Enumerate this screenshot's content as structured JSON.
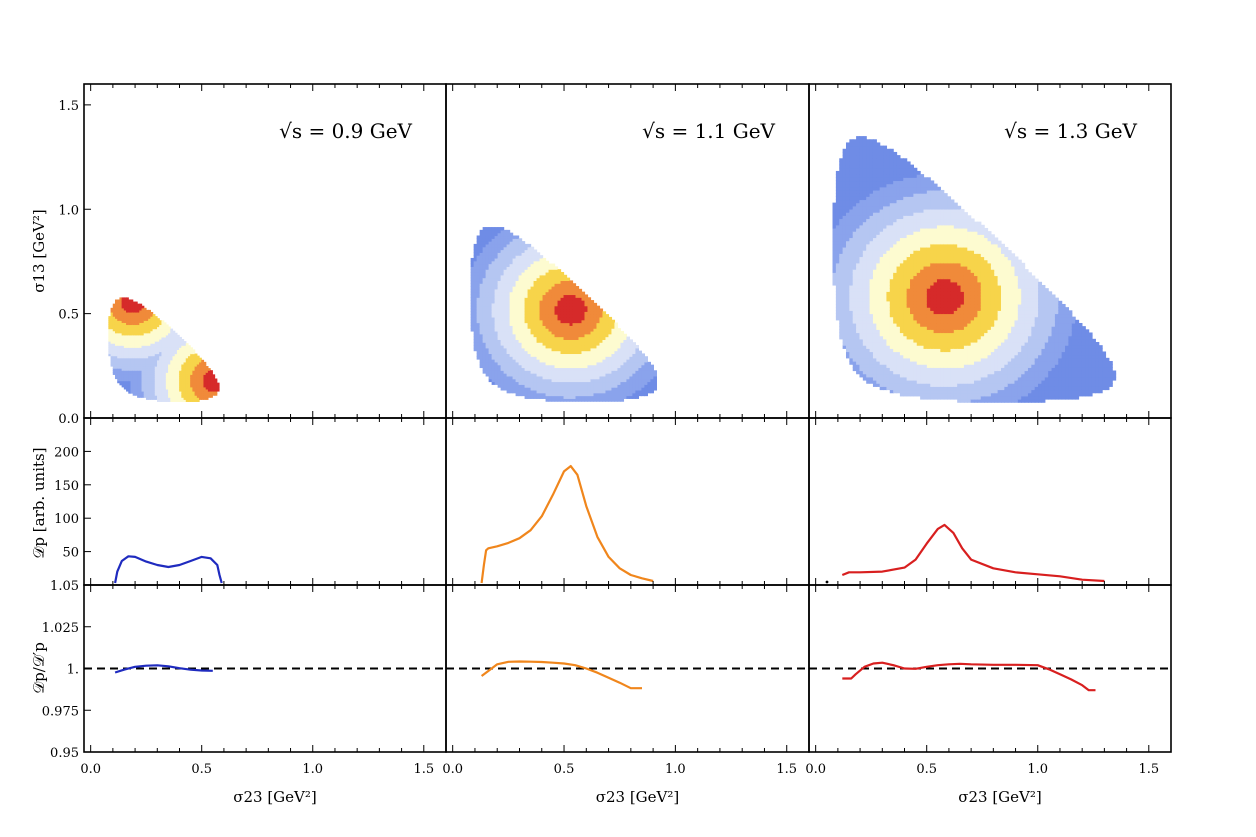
{
  "chart_data": [
    {
      "type": "heatmap",
      "panel_row": "dalitz",
      "title": "√s = 0.9  GeV",
      "sqrt_s": 0.9,
      "ylabel": "σ13 [GeV²]",
      "xlim": [
        -0.03,
        1.6
      ],
      "ylim": [
        0.0,
        1.6
      ],
      "yticks": [
        "0.0",
        "0.5",
        "1.0",
        "1.5"
      ],
      "hotspots": [
        [
          0.19,
          0.56
        ],
        [
          0.56,
          0.18
        ]
      ],
      "colors": [
        "#d62a2a",
        "#f08a3a",
        "#f7d44a",
        "#fdfbd0",
        "#d9e1f7",
        "#b5c6f2",
        "#8aa3ec",
        "#6f8ce6"
      ]
    },
    {
      "type": "heatmap",
      "panel_row": "dalitz",
      "title": "√s = 1.1  GeV",
      "sqrt_s": 1.1,
      "xlim": [
        -0.03,
        1.6
      ],
      "ylim": [
        0.0,
        1.6
      ],
      "hotspots": [
        [
          0.53,
          0.52
        ]
      ],
      "colors": [
        "#d62a2a",
        "#f08a3a",
        "#f7d44a",
        "#fdfbd0",
        "#d9e1f7",
        "#b5c6f2",
        "#8aa3ec",
        "#6f8ce6"
      ]
    },
    {
      "type": "heatmap",
      "panel_row": "dalitz",
      "title": "√s = 1.3  GeV",
      "sqrt_s": 1.3,
      "xlim": [
        -0.03,
        1.6
      ],
      "ylim": [
        0.0,
        1.6
      ],
      "hotspots": [
        [
          0.58,
          0.58
        ]
      ],
      "colors": [
        "#d62a2a",
        "#f08a3a",
        "#f7d44a",
        "#fdfbd0",
        "#d9e1f7",
        "#b5c6f2",
        "#8aa3ec",
        "#6f8ce6"
      ]
    },
    {
      "type": "line",
      "panel_row": "projection",
      "ylabel": "𝒟p [arb. units]",
      "xlim": [
        -0.03,
        1.6
      ],
      "ylim": [
        0,
        250
      ],
      "yticks": [
        "50",
        "100",
        "150",
        "200"
      ],
      "series": [
        {
          "color": "#1f2bbf",
          "x": [
            0.11,
            0.12,
            0.14,
            0.17,
            0.2,
            0.25,
            0.3,
            0.35,
            0.4,
            0.45,
            0.5,
            0.54,
            0.57,
            0.58,
            0.59
          ],
          "y": [
            3,
            20,
            36,
            43,
            42,
            35,
            30,
            27,
            30,
            36,
            42,
            40,
            30,
            15,
            3
          ]
        }
      ]
    },
    {
      "type": "line",
      "panel_row": "projection",
      "xlim": [
        -0.03,
        1.6
      ],
      "ylim": [
        0,
        250
      ],
      "series": [
        {
          "color": "#f0861c",
          "x": [
            0.13,
            0.14,
            0.15,
            0.16,
            0.2,
            0.25,
            0.3,
            0.35,
            0.4,
            0.45,
            0.5,
            0.53,
            0.56,
            0.6,
            0.65,
            0.7,
            0.75,
            0.8,
            0.85,
            0.9
          ],
          "y": [
            3,
            30,
            52,
            55,
            58,
            63,
            70,
            82,
            103,
            135,
            170,
            178,
            165,
            118,
            72,
            42,
            25,
            15,
            10,
            6
          ]
        }
      ]
    },
    {
      "type": "line",
      "panel_row": "projection",
      "xlim": [
        -0.03,
        1.6
      ],
      "ylim": [
        0,
        250
      ],
      "series": [
        {
          "color": "#d81f1f",
          "x": [
            0.12,
            0.15,
            0.2,
            0.3,
            0.4,
            0.45,
            0.5,
            0.55,
            0.58,
            0.62,
            0.66,
            0.7,
            0.8,
            0.9,
            1.0,
            1.1,
            1.2,
            1.3
          ],
          "y": [
            15,
            19,
            19,
            20,
            26,
            38,
            62,
            84,
            90,
            78,
            55,
            38,
            25,
            19,
            16,
            13,
            8,
            6
          ]
        }
      ]
    },
    {
      "type": "line",
      "panel_row": "ratio",
      "ylabel": "𝒟p/𝒟′p",
      "xlabel": "σ23 [GeV²]",
      "xlim": [
        -0.03,
        1.6
      ],
      "ylim": [
        0.95,
        1.05
      ],
      "xticks": [
        "0.0",
        "0.5",
        "1.0",
        "1.5"
      ],
      "yticks": [
        "0.95",
        "0.975",
        "1.",
        "1.025",
        "1.05"
      ],
      "reference_line": 1.0,
      "series": [
        {
          "color": "#1f2bbf",
          "x": [
            0.11,
            0.15,
            0.2,
            0.25,
            0.3,
            0.35,
            0.4,
            0.45,
            0.5,
            0.55
          ],
          "y": [
            0.9976,
            0.9993,
            1.001,
            1.0017,
            1.0019,
            1.0013,
            1.0002,
            0.9993,
            0.9988,
            0.9986
          ]
        }
      ]
    },
    {
      "type": "line",
      "panel_row": "ratio",
      "xlabel": "σ23 [GeV²]",
      "xlim": [
        -0.03,
        1.6
      ],
      "ylim": [
        0.95,
        1.05
      ],
      "xticks": [
        "0.0",
        "0.5",
        "1.0",
        "1.5"
      ],
      "reference_line": 1.0,
      "series": [
        {
          "color": "#f0861c",
          "x": [
            0.13,
            0.16,
            0.2,
            0.25,
            0.3,
            0.35,
            0.4,
            0.45,
            0.5,
            0.55,
            0.6,
            0.65,
            0.7,
            0.75,
            0.8,
            0.85
          ],
          "y": [
            0.9955,
            0.9985,
            1.0025,
            1.004,
            1.0042,
            1.0041,
            1.0039,
            1.0035,
            1.003,
            1.002,
            1.0,
            0.9975,
            0.9945,
            0.9915,
            0.9882,
            0.9882
          ]
        }
      ]
    },
    {
      "type": "line",
      "panel_row": "ratio",
      "xlabel": "σ23 [GeV²]",
      "xlim": [
        -0.03,
        1.6
      ],
      "ylim": [
        0.95,
        1.05
      ],
      "xticks": [
        "0.0",
        "0.5",
        "1.0",
        "1.5"
      ],
      "reference_line": 1.0,
      "series": [
        {
          "color": "#d81f1f",
          "x": [
            0.12,
            0.16,
            0.18,
            0.22,
            0.26,
            0.3,
            0.35,
            0.4,
            0.45,
            0.5,
            0.55,
            0.6,
            0.65,
            0.7,
            0.8,
            0.9,
            1.0,
            1.05,
            1.1,
            1.15,
            1.2,
            1.23,
            1.26
          ],
          "y": [
            0.994,
            0.994,
            0.9965,
            1.001,
            1.003,
            1.0035,
            1.002,
            1.0,
            0.9998,
            1.001,
            1.002,
            1.0025,
            1.0028,
            1.0025,
            1.0022,
            1.0022,
            1.002,
            0.9995,
            0.9965,
            0.9935,
            0.99,
            0.987,
            0.987
          ]
        }
      ]
    }
  ]
}
